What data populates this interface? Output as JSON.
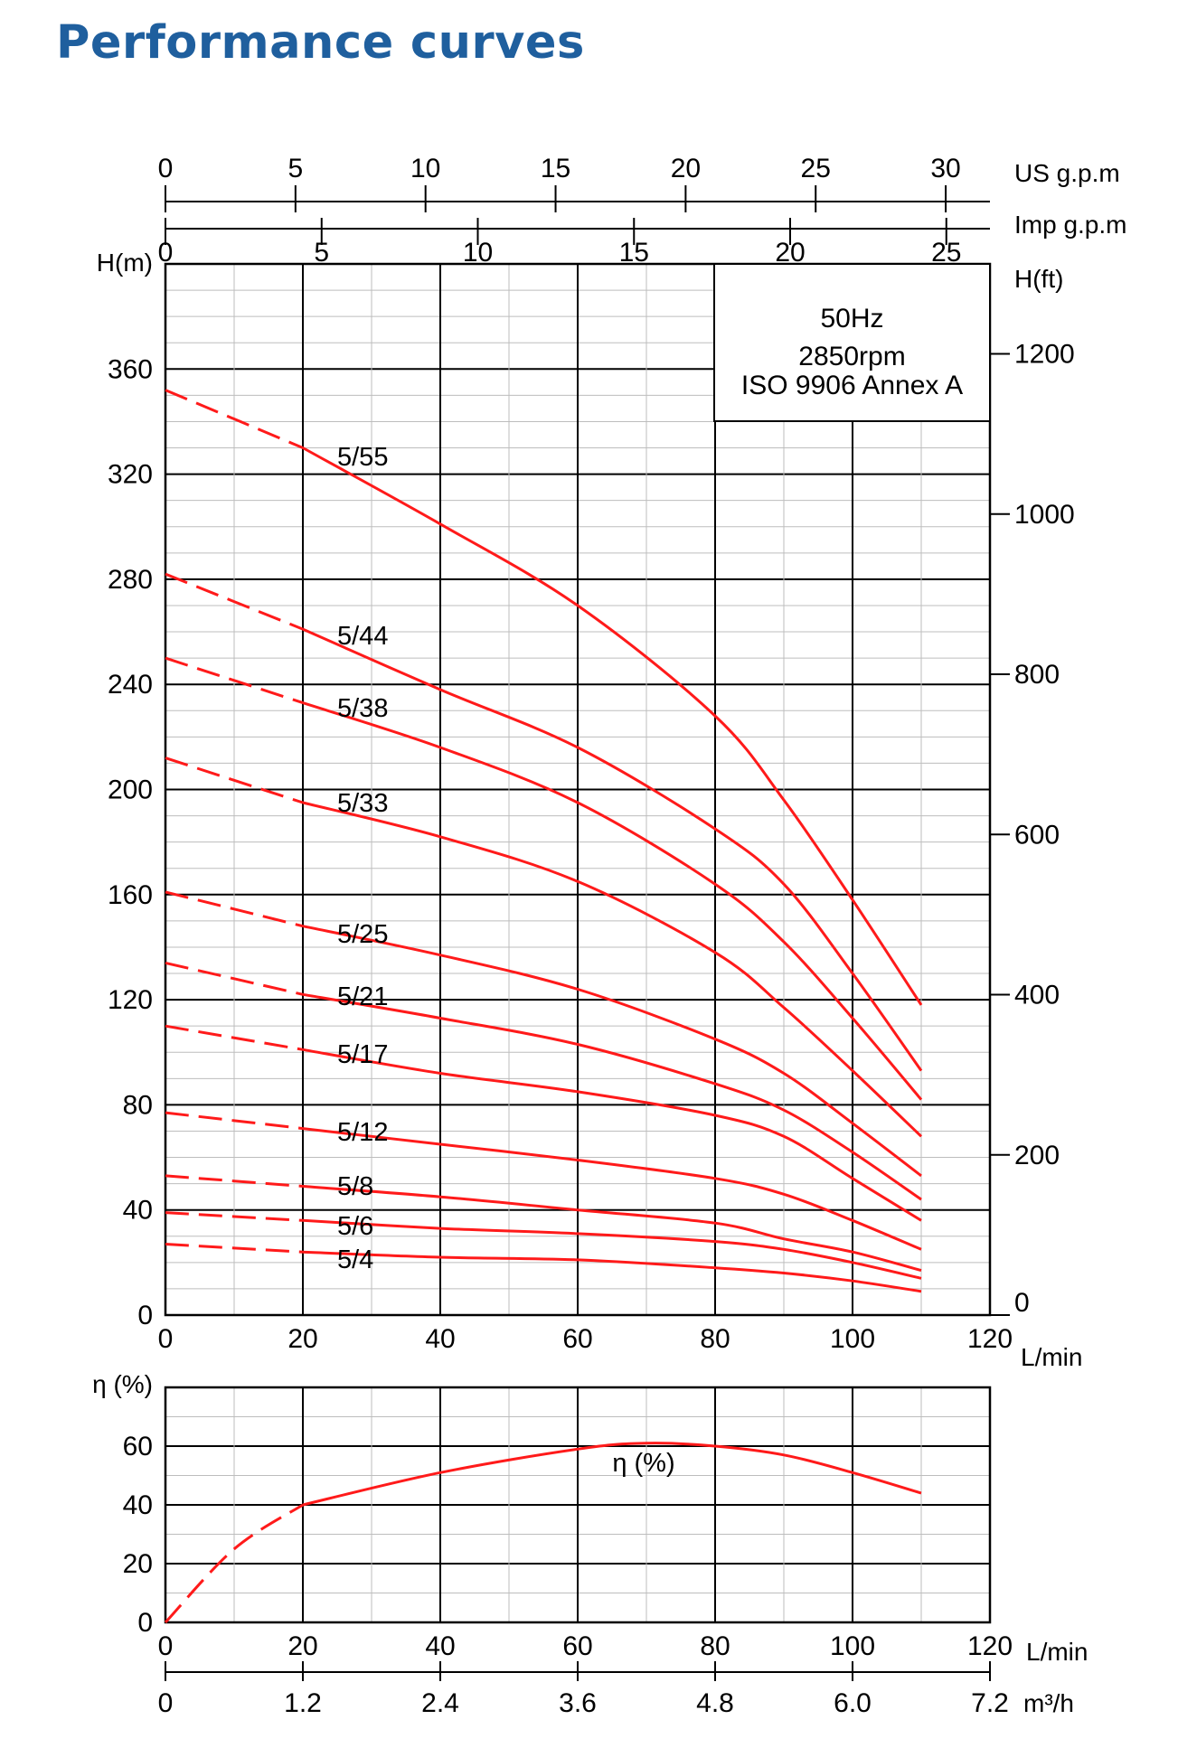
{
  "page": {
    "title": "Performance curves"
  },
  "info_box": {
    "frequency": "50Hz",
    "speed": "2850rpm",
    "standard": "ISO 9906 Annex A"
  },
  "colors": {
    "title": "#1f5f9e",
    "curve": "#ff1a1a",
    "frequency": "#1f6fd0",
    "grid_major": "#000000",
    "grid_minor": "#bdbdbd"
  },
  "axes": {
    "us_gpm": {
      "unit": "US g.p.m",
      "ticks": [
        "0",
        "5",
        "10",
        "15",
        "20",
        "25",
        "30"
      ]
    },
    "imp_gpm": {
      "unit": "Imp g.p.m",
      "ticks": [
        "0",
        "5",
        "10",
        "15",
        "20",
        "25"
      ]
    },
    "flow": {
      "unit": "L/min",
      "ticks": [
        "0",
        "20",
        "40",
        "60",
        "80",
        "100",
        "120"
      ]
    },
    "m3h": {
      "unit": "m³/h",
      "ticks": [
        "0",
        "1.2",
        "2.4",
        "3.6",
        "4.8",
        "6.0",
        "7.2"
      ]
    },
    "head_m": {
      "unit": "H(m)",
      "ticks": [
        "0",
        "40",
        "80",
        "120",
        "160",
        "200",
        "240",
        "280",
        "320",
        "360"
      ]
    },
    "head_ft": {
      "unit": "H(ft)",
      "ticks": [
        "0",
        "200",
        "400",
        "600",
        "800",
        "1000",
        "1200"
      ]
    },
    "efficiency": {
      "unit": "η (%)",
      "ticks": [
        "0",
        "20",
        "40",
        "60"
      ]
    }
  },
  "chart_data": [
    {
      "type": "line",
      "x_unit": "L/min",
      "xlim": [
        0,
        120
      ],
      "ylim": [
        0,
        400
      ],
      "ylabel": "H(m)",
      "y2label": "H(ft)",
      "grid": true,
      "dashed_segment_x": [
        0,
        20
      ],
      "series": [
        {
          "name": "5/55",
          "x": [
            0,
            20,
            40,
            60,
            80,
            90,
            100,
            110
          ],
          "values": [
            352,
            330,
            301,
            270,
            228,
            196,
            158,
            118
          ]
        },
        {
          "name": "5/44",
          "x": [
            0,
            20,
            40,
            60,
            80,
            90,
            100,
            110
          ],
          "values": [
            282,
            261,
            238,
            216,
            185,
            164,
            130,
            93
          ]
        },
        {
          "name": "5/38",
          "x": [
            0,
            20,
            40,
            60,
            80,
            90,
            100,
            110
          ],
          "values": [
            250,
            233,
            216,
            195,
            164,
            142,
            113,
            82
          ]
        },
        {
          "name": "5/33",
          "x": [
            0,
            20,
            40,
            60,
            80,
            90,
            100,
            110
          ],
          "values": [
            212,
            195,
            182,
            165,
            138,
            117,
            93,
            68
          ]
        },
        {
          "name": "5/25",
          "x": [
            0,
            20,
            40,
            60,
            80,
            90,
            100,
            110
          ],
          "values": [
            161,
            148,
            137,
            124,
            105,
            92,
            73,
            53
          ]
        },
        {
          "name": "5/21",
          "x": [
            0,
            20,
            40,
            60,
            80,
            90,
            100,
            110
          ],
          "values": [
            134,
            122,
            113,
            103,
            88,
            78,
            62,
            44
          ]
        },
        {
          "name": "5/17",
          "x": [
            0,
            20,
            40,
            60,
            80,
            90,
            100,
            110
          ],
          "values": [
            110,
            101,
            92,
            85,
            76,
            68,
            52,
            36
          ]
        },
        {
          "name": "5/12",
          "x": [
            0,
            20,
            40,
            60,
            80,
            90,
            100,
            110
          ],
          "values": [
            77,
            71,
            65,
            59,
            52,
            46,
            36,
            25
          ]
        },
        {
          "name": "5/8",
          "x": [
            0,
            20,
            40,
            60,
            80,
            90,
            100,
            110
          ],
          "values": [
            53,
            49,
            45,
            40,
            35,
            29,
            24,
            17
          ]
        },
        {
          "name": "5/6",
          "x": [
            0,
            20,
            40,
            60,
            80,
            90,
            100,
            110
          ],
          "values": [
            39,
            36,
            33,
            31,
            28,
            25,
            20,
            14
          ]
        },
        {
          "name": "5/4",
          "x": [
            0,
            20,
            40,
            60,
            80,
            90,
            100,
            110
          ],
          "values": [
            27,
            24,
            22,
            21,
            18,
            16,
            13,
            9
          ]
        }
      ]
    },
    {
      "type": "line",
      "x_unit": "L/min",
      "xlim": [
        0,
        120
      ],
      "ylim": [
        0,
        80
      ],
      "ylabel": "η (%)",
      "grid": true,
      "dashed_segment_x": [
        0,
        20
      ],
      "series": [
        {
          "name": "η (%)",
          "x": [
            0,
            10,
            20,
            40,
            60,
            70,
            80,
            90,
            100,
            110
          ],
          "values": [
            0,
            25,
            40,
            51,
            59,
            61,
            60,
            57,
            51,
            44
          ]
        }
      ]
    }
  ]
}
